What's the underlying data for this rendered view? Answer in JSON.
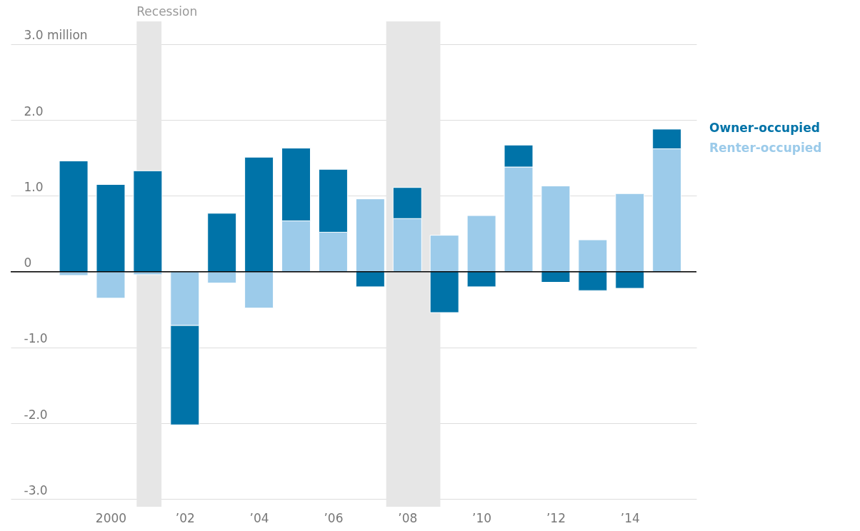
{
  "chart_data": {
    "type": "bar",
    "stacked": true,
    "x": [
      1999,
      2000,
      2001,
      2002,
      2003,
      2004,
      2005,
      2006,
      2007,
      2008,
      2009,
      2010,
      2011,
      2012,
      2013,
      2014,
      2015
    ],
    "series": [
      {
        "name": "Renter-occupied",
        "color": "#9ccbea",
        "values": [
          -0.05,
          -0.35,
          -0.04,
          -0.71,
          -0.15,
          -0.48,
          0.67,
          0.52,
          0.96,
          0.7,
          0.48,
          0.74,
          1.38,
          1.13,
          0.42,
          1.03,
          1.62
        ]
      },
      {
        "name": "Owner-occupied",
        "color": "#0073a8",
        "values": [
          1.46,
          1.15,
          1.33,
          -1.31,
          0.77,
          1.51,
          0.96,
          0.83,
          -0.2,
          0.41,
          -0.54,
          -0.2,
          0.29,
          -0.14,
          -0.25,
          -0.22,
          0.26
        ]
      }
    ],
    "xlim": [
      1997.4,
      2015.7
    ],
    "xticks": [
      {
        "value": 2000,
        "label": "2000"
      },
      {
        "value": 2002,
        "label": "’02"
      },
      {
        "value": 2004,
        "label": "’04"
      },
      {
        "value": 2006,
        "label": "’06"
      },
      {
        "value": 2008,
        "label": "’08"
      },
      {
        "value": 2010,
        "label": "’10"
      },
      {
        "value": 2012,
        "label": "’12"
      },
      {
        "value": 2014,
        "label": "’14"
      }
    ],
    "ylim": [
      -3.1,
      3.3
    ],
    "yticks": [
      {
        "value": 3,
        "label": "3.0 million"
      },
      {
        "value": 2,
        "label": "2.0"
      },
      {
        "value": 1,
        "label": "1.0"
      },
      {
        "value": 0,
        "label": "0"
      },
      {
        "value": -1,
        "label": "-1.0"
      },
      {
        "value": -2,
        "label": "-2.0"
      },
      {
        "value": -3,
        "label": "-3.0"
      }
    ],
    "bands": [
      {
        "axis": "x",
        "from": 2000.7,
        "to": 2001.37,
        "label": "Recession",
        "color": "#e6e6e6"
      },
      {
        "axis": "x",
        "from": 2007.43,
        "to": 2008.89,
        "color": "#e6e6e6"
      }
    ],
    "ref_lines": [
      {
        "axis": "y",
        "value": 0,
        "color": "#000000"
      }
    ],
    "grid": "y",
    "legend": "top right"
  }
}
